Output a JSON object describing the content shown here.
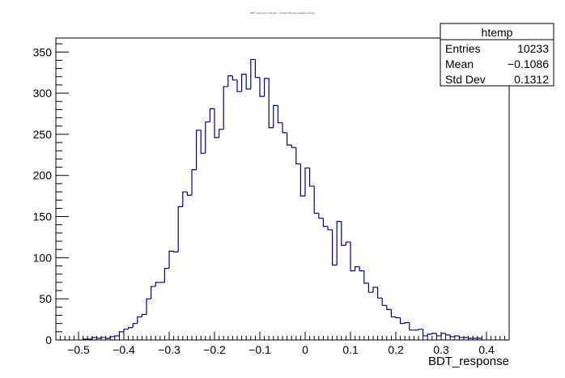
{
  "chart_data": {
    "type": "bar",
    "title": "BDT_response>>htemp(...) {(Cut) with long selection string}",
    "xlabel": "BDT_response",
    "ylabel": "",
    "xlim": [
      -0.55,
      0.45
    ],
    "ylim": [
      0,
      367
    ],
    "bin_width": 0.01,
    "xticks": [
      -0.5,
      -0.4,
      -0.3,
      -0.2,
      -0.1,
      0,
      0.1,
      0.2,
      0.3,
      0.4
    ],
    "xtick_labels": [
      "−0.5",
      "−0.4",
      "−0.3",
      "−0.2",
      "−0.1",
      "0",
      "0.1",
      "0.2",
      "0.3",
      "0.4"
    ],
    "yticks": [
      0,
      50,
      100,
      150,
      200,
      250,
      300,
      350
    ],
    "ytick_labels": [
      "0",
      "50",
      "100",
      "150",
      "200",
      "250",
      "300",
      "350"
    ],
    "line_color": "#000099",
    "grid": false,
    "legend": "none",
    "stats_box": {
      "name": "htemp",
      "placement": "top-right",
      "rows": [
        {
          "label": "Entries",
          "value": "10233"
        },
        {
          "label": "Mean",
          "value": "−0.1086"
        },
        {
          "label": "Std Dev",
          "value": "0.1312"
        }
      ]
    },
    "bins_x_low": [
      -0.49,
      -0.48,
      -0.47,
      -0.46,
      -0.45,
      -0.44,
      -0.43,
      -0.42,
      -0.41,
      -0.4,
      -0.39,
      -0.38,
      -0.37,
      -0.36,
      -0.35,
      -0.34,
      -0.33,
      -0.32,
      -0.31,
      -0.3,
      -0.29,
      -0.28,
      -0.27,
      -0.26,
      -0.25,
      -0.24,
      -0.23,
      -0.22,
      -0.21,
      -0.2,
      -0.19,
      -0.18,
      -0.17,
      -0.16,
      -0.15,
      -0.14,
      -0.13,
      -0.12,
      -0.11,
      -0.1,
      -0.09,
      -0.08,
      -0.07,
      -0.06,
      -0.05,
      -0.04,
      -0.03,
      -0.02,
      -0.01,
      0.0,
      0.01,
      0.02,
      0.03,
      0.04,
      0.05,
      0.06,
      0.07,
      0.08,
      0.09,
      0.1,
      0.11,
      0.12,
      0.13,
      0.14,
      0.15,
      0.16,
      0.17,
      0.18,
      0.19,
      0.2,
      0.21,
      0.22,
      0.23,
      0.24,
      0.25,
      0.26,
      0.27,
      0.28,
      0.29,
      0.3,
      0.31,
      0.32,
      0.33,
      0.34,
      0.35,
      0.36,
      0.37,
      0.38
    ],
    "values": [
      1,
      1,
      3,
      2,
      3,
      2,
      4,
      5,
      10,
      13,
      15,
      20,
      28,
      31,
      50,
      65,
      70,
      70,
      87,
      108,
      107,
      162,
      180,
      176,
      207,
      255,
      227,
      265,
      281,
      246,
      256,
      308,
      321,
      316,
      302,
      323,
      305,
      341,
      319,
      296,
      318,
      258,
      285,
      264,
      252,
      237,
      234,
      214,
      175,
      209,
      187,
      154,
      148,
      138,
      134,
      91,
      144,
      115,
      119,
      84,
      89,
      84,
      69,
      58,
      64,
      51,
      42,
      37,
      28,
      27,
      20,
      21,
      12,
      12,
      13,
      5,
      7,
      8,
      5,
      8,
      6,
      4,
      5,
      3,
      3,
      2,
      2,
      2
    ]
  }
}
